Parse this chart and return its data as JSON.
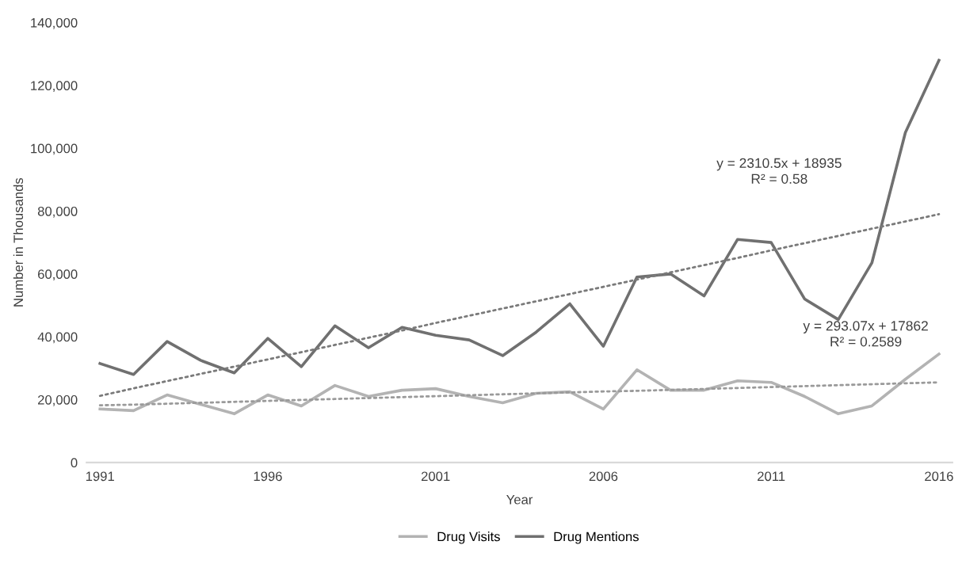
{
  "chart_data": {
    "type": "line",
    "xlabel": "Year",
    "ylabel": "Number in Thousands",
    "x": [
      1991,
      1992,
      1993,
      1994,
      1995,
      1996,
      1997,
      1998,
      1999,
      2000,
      2001,
      2002,
      2003,
      2004,
      2005,
      2006,
      2007,
      2008,
      2009,
      2010,
      2011,
      2012,
      2013,
      2014,
      2015,
      2016
    ],
    "series": [
      {
        "name": "Drug Visits",
        "color": "#b3b3b3",
        "values": [
          17000,
          16500,
          21500,
          18500,
          15500,
          21500,
          18000,
          24500,
          21000,
          23000,
          23500,
          21000,
          19000,
          22000,
          22500,
          17000,
          29500,
          23000,
          23000,
          26000,
          25500,
          21000,
          15500,
          18000,
          26500,
          34500
        ]
      },
      {
        "name": "Drug Mentions",
        "color": "#707070",
        "values": [
          31500,
          28000,
          38500,
          32500,
          28500,
          39500,
          30500,
          43500,
          36500,
          43000,
          40500,
          39000,
          34000,
          41500,
          50500,
          37000,
          59000,
          60000,
          53000,
          71000,
          70000,
          52000,
          45500,
          63500,
          105000,
          128000
        ]
      },
      {
        "color": "#9a9a9a",
        "line_style": "dotted",
        "values": [
          18200,
          18400,
          18700,
          19000,
          19300,
          19600,
          19900,
          20200,
          20500,
          20800,
          21100,
          21400,
          21700,
          22000,
          22300,
          22600,
          22800,
          23100,
          23400,
          23700,
          24000,
          24300,
          24600,
          24900,
          25200,
          25500
        ]
      },
      {
        "color": "#7a7a7a",
        "line_style": "dotted",
        "values": [
          21200,
          23600,
          25900,
          28200,
          30500,
          32800,
          35100,
          37400,
          39700,
          42000,
          44400,
          46700,
          49000,
          51300,
          53600,
          55900,
          58200,
          60500,
          62800,
          65100,
          67500,
          69800,
          72100,
          74400,
          76700,
          79000
        ]
      }
    ],
    "xlim": [
      1990.6,
      2016.4
    ],
    "xticks": [
      1991,
      1996,
      2001,
      2006,
      2011,
      2016
    ],
    "ylim": [
      0,
      140000
    ],
    "yticks": [
      0,
      {
        "value": 20000,
        "label": "20,000"
      },
      {
        "value": 40000,
        "label": "40,000"
      },
      {
        "value": 60000,
        "label": "60,000"
      },
      {
        "value": 80000,
        "label": "80,000"
      },
      {
        "value": 100000,
        "label": "100,000"
      },
      {
        "value": 120000,
        "label": "120,000"
      },
      {
        "value": 140000,
        "label": "140,000"
      }
    ],
    "annotations": [
      "y = 2310.5x + 18935\nR² = 0.58",
      "y = 293.07x + 17862\nR² = 0.2589"
    ],
    "grid": false,
    "legend": "bottom",
    "marker": "none",
    "line_style": "solid"
  }
}
